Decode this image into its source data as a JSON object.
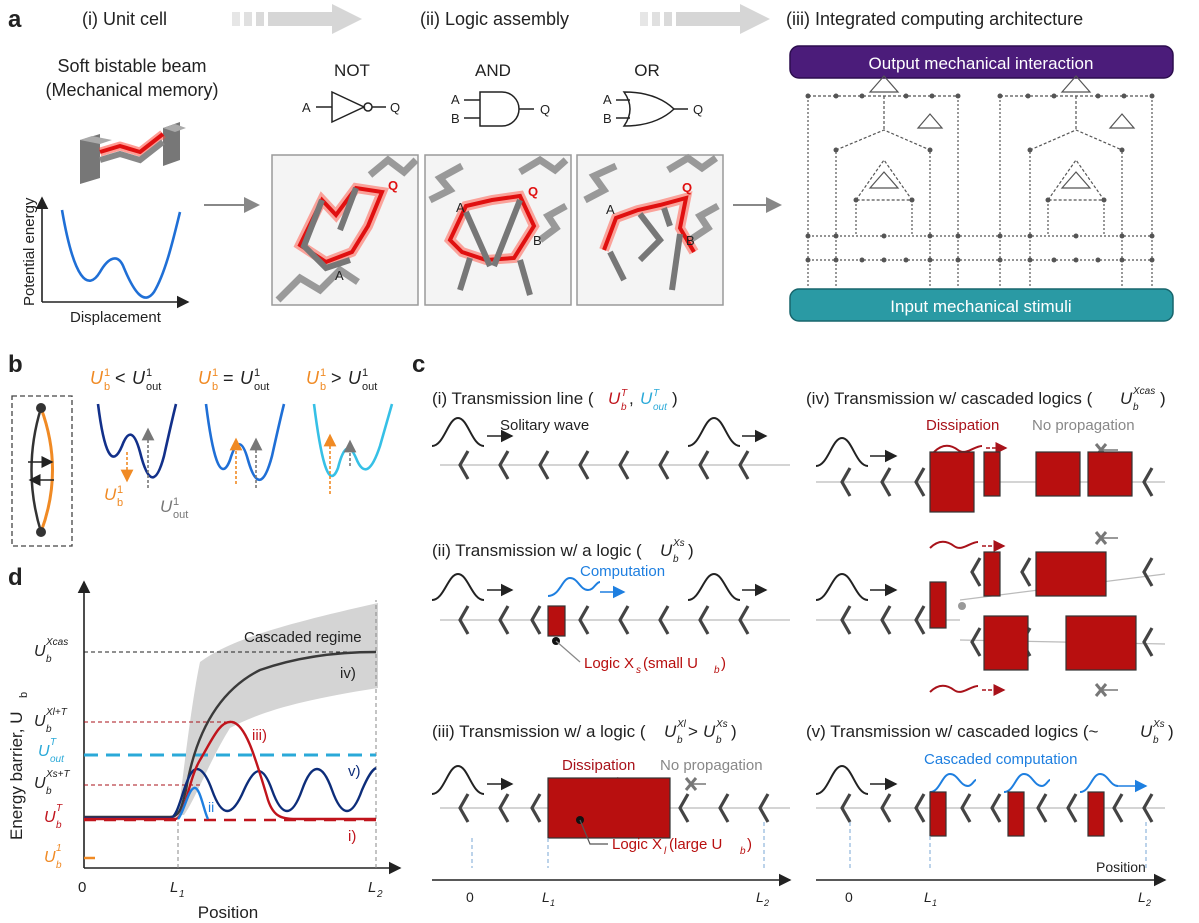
{
  "panel_a": {
    "letter": "a",
    "stage1": "(i) Unit cell",
    "stage2": "(ii) Logic assembly",
    "stage3": "(iii) Integrated computing architecture",
    "unit_title1": "Soft bistable beam",
    "unit_title2": "(Mechanical memory)",
    "ylabel": "Potential energy",
    "xlabel": "Displacement",
    "gate_not": "NOT",
    "gate_and": "AND",
    "gate_or": "OR",
    "pin_a": "A",
    "pin_b": "B",
    "pin_q": "Q",
    "output_bar": "Output mechanical interaction",
    "input_bar": "Input mechanical stimuli"
  },
  "panel_b": {
    "letter": "b",
    "c1": "< ",
    "c2": "= ",
    "c3": "> ",
    "ub": "U",
    "uout": "U",
    "sup1": "1",
    "sub_b": "b",
    "sub_out": "out"
  },
  "panel_c": {
    "letter": "c",
    "i_title": "(i) Transmission line (",
    "ii_title": "(ii) Transmission w/ a logic (",
    "iii_title": "(iii) Transmission w/ a logic (",
    "iv_title": "(iv) Transmission w/ cascaded logics (",
    "v_title": "(v) Transmission w/ cascaded logics (~",
    "solitary": "Solitary wave",
    "computation": "Computation",
    "logic_small": "Logic X",
    "logic_small_tail": " (small U",
    "dissipation": "Dissipation",
    "no_prop": "No propagation",
    "logic_large": "Logic X",
    "logic_large_tail": " (large U",
    "cascaded_comp": "Cascaded computation",
    "zero": "0",
    "L1": "L",
    "L2": "L",
    "position": "Position"
  },
  "panel_d": {
    "letter": "d",
    "ylabel": "Energy barrier, U",
    "xlabel": "Position",
    "regime": "Cascaded regime",
    "zero": "0",
    "L1": "L",
    "L2": "L",
    "y_labels": [
      "U",
      "U",
      "U",
      "U",
      "U",
      "U"
    ],
    "curves": [
      "i)",
      "ii",
      "iii)",
      "iv)",
      "v)"
    ],
    "colors": {
      "ub1": "#f08a24",
      "ubT": "#c0141c",
      "uoutT": "#2aa9d8",
      "navy": "#0d2d7a",
      "dark": "#3a3a3a",
      "blue": "#1e7fe0"
    }
  }
}
